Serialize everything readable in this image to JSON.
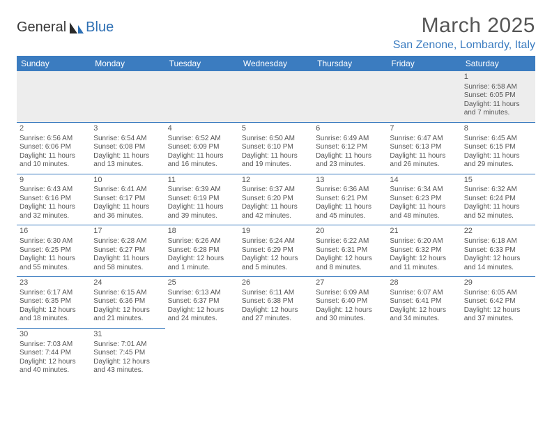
{
  "brand": {
    "part1": "General",
    "part2": "Blue"
  },
  "title": "March 2025",
  "location": "San Zenone, Lombardy, Italy",
  "header_bg": "#3b7cc0",
  "weekdays": [
    "Sunday",
    "Monday",
    "Tuesday",
    "Wednesday",
    "Thursday",
    "Friday",
    "Saturday"
  ],
  "weeks": [
    [
      {
        "n": "",
        "lines": []
      },
      {
        "n": "",
        "lines": []
      },
      {
        "n": "",
        "lines": []
      },
      {
        "n": "",
        "lines": []
      },
      {
        "n": "",
        "lines": []
      },
      {
        "n": "",
        "lines": []
      },
      {
        "n": "1",
        "lines": [
          "Sunrise: 6:58 AM",
          "Sunset: 6:05 PM",
          "Daylight: 11 hours",
          "and 7 minutes."
        ]
      }
    ],
    [
      {
        "n": "2",
        "lines": [
          "Sunrise: 6:56 AM",
          "Sunset: 6:06 PM",
          "Daylight: 11 hours",
          "and 10 minutes."
        ]
      },
      {
        "n": "3",
        "lines": [
          "Sunrise: 6:54 AM",
          "Sunset: 6:08 PM",
          "Daylight: 11 hours",
          "and 13 minutes."
        ]
      },
      {
        "n": "4",
        "lines": [
          "Sunrise: 6:52 AM",
          "Sunset: 6:09 PM",
          "Daylight: 11 hours",
          "and 16 minutes."
        ]
      },
      {
        "n": "5",
        "lines": [
          "Sunrise: 6:50 AM",
          "Sunset: 6:10 PM",
          "Daylight: 11 hours",
          "and 19 minutes."
        ]
      },
      {
        "n": "6",
        "lines": [
          "Sunrise: 6:49 AM",
          "Sunset: 6:12 PM",
          "Daylight: 11 hours",
          "and 23 minutes."
        ]
      },
      {
        "n": "7",
        "lines": [
          "Sunrise: 6:47 AM",
          "Sunset: 6:13 PM",
          "Daylight: 11 hours",
          "and 26 minutes."
        ]
      },
      {
        "n": "8",
        "lines": [
          "Sunrise: 6:45 AM",
          "Sunset: 6:15 PM",
          "Daylight: 11 hours",
          "and 29 minutes."
        ]
      }
    ],
    [
      {
        "n": "9",
        "lines": [
          "Sunrise: 6:43 AM",
          "Sunset: 6:16 PM",
          "Daylight: 11 hours",
          "and 32 minutes."
        ]
      },
      {
        "n": "10",
        "lines": [
          "Sunrise: 6:41 AM",
          "Sunset: 6:17 PM",
          "Daylight: 11 hours",
          "and 36 minutes."
        ]
      },
      {
        "n": "11",
        "lines": [
          "Sunrise: 6:39 AM",
          "Sunset: 6:19 PM",
          "Daylight: 11 hours",
          "and 39 minutes."
        ]
      },
      {
        "n": "12",
        "lines": [
          "Sunrise: 6:37 AM",
          "Sunset: 6:20 PM",
          "Daylight: 11 hours",
          "and 42 minutes."
        ]
      },
      {
        "n": "13",
        "lines": [
          "Sunrise: 6:36 AM",
          "Sunset: 6:21 PM",
          "Daylight: 11 hours",
          "and 45 minutes."
        ]
      },
      {
        "n": "14",
        "lines": [
          "Sunrise: 6:34 AM",
          "Sunset: 6:23 PM",
          "Daylight: 11 hours",
          "and 48 minutes."
        ]
      },
      {
        "n": "15",
        "lines": [
          "Sunrise: 6:32 AM",
          "Sunset: 6:24 PM",
          "Daylight: 11 hours",
          "and 52 minutes."
        ]
      }
    ],
    [
      {
        "n": "16",
        "lines": [
          "Sunrise: 6:30 AM",
          "Sunset: 6:25 PM",
          "Daylight: 11 hours",
          "and 55 minutes."
        ]
      },
      {
        "n": "17",
        "lines": [
          "Sunrise: 6:28 AM",
          "Sunset: 6:27 PM",
          "Daylight: 11 hours",
          "and 58 minutes."
        ]
      },
      {
        "n": "18",
        "lines": [
          "Sunrise: 6:26 AM",
          "Sunset: 6:28 PM",
          "Daylight: 12 hours",
          "and 1 minute."
        ]
      },
      {
        "n": "19",
        "lines": [
          "Sunrise: 6:24 AM",
          "Sunset: 6:29 PM",
          "Daylight: 12 hours",
          "and 5 minutes."
        ]
      },
      {
        "n": "20",
        "lines": [
          "Sunrise: 6:22 AM",
          "Sunset: 6:31 PM",
          "Daylight: 12 hours",
          "and 8 minutes."
        ]
      },
      {
        "n": "21",
        "lines": [
          "Sunrise: 6:20 AM",
          "Sunset: 6:32 PM",
          "Daylight: 12 hours",
          "and 11 minutes."
        ]
      },
      {
        "n": "22",
        "lines": [
          "Sunrise: 6:18 AM",
          "Sunset: 6:33 PM",
          "Daylight: 12 hours",
          "and 14 minutes."
        ]
      }
    ],
    [
      {
        "n": "23",
        "lines": [
          "Sunrise: 6:17 AM",
          "Sunset: 6:35 PM",
          "Daylight: 12 hours",
          "and 18 minutes."
        ]
      },
      {
        "n": "24",
        "lines": [
          "Sunrise: 6:15 AM",
          "Sunset: 6:36 PM",
          "Daylight: 12 hours",
          "and 21 minutes."
        ]
      },
      {
        "n": "25",
        "lines": [
          "Sunrise: 6:13 AM",
          "Sunset: 6:37 PM",
          "Daylight: 12 hours",
          "and 24 minutes."
        ]
      },
      {
        "n": "26",
        "lines": [
          "Sunrise: 6:11 AM",
          "Sunset: 6:38 PM",
          "Daylight: 12 hours",
          "and 27 minutes."
        ]
      },
      {
        "n": "27",
        "lines": [
          "Sunrise: 6:09 AM",
          "Sunset: 6:40 PM",
          "Daylight: 12 hours",
          "and 30 minutes."
        ]
      },
      {
        "n": "28",
        "lines": [
          "Sunrise: 6:07 AM",
          "Sunset: 6:41 PM",
          "Daylight: 12 hours",
          "and 34 minutes."
        ]
      },
      {
        "n": "29",
        "lines": [
          "Sunrise: 6:05 AM",
          "Sunset: 6:42 PM",
          "Daylight: 12 hours",
          "and 37 minutes."
        ]
      }
    ],
    [
      {
        "n": "30",
        "lines": [
          "Sunrise: 7:03 AM",
          "Sunset: 7:44 PM",
          "Daylight: 12 hours",
          "and 40 minutes."
        ]
      },
      {
        "n": "31",
        "lines": [
          "Sunrise: 7:01 AM",
          "Sunset: 7:45 PM",
          "Daylight: 12 hours",
          "and 43 minutes."
        ]
      },
      {
        "n": "",
        "lines": []
      },
      {
        "n": "",
        "lines": []
      },
      {
        "n": "",
        "lines": []
      },
      {
        "n": "",
        "lines": []
      },
      {
        "n": "",
        "lines": []
      }
    ]
  ]
}
